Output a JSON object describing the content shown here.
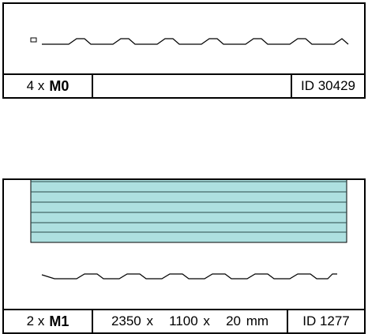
{
  "panels": [
    {
      "quantity_label": "4 x",
      "code": "M0",
      "dimensions": "",
      "id_label": "ID 30429",
      "panel_colors": {
        "outline": "#000000"
      }
    },
    {
      "quantity_label": "2 x",
      "code": "M1",
      "dimensions": "2350 x   1100 x   20 mm",
      "id_label": "ID 1277",
      "panel_colors": {
        "fill": "#aee0e0",
        "stripe_lines": "#2a4a4a",
        "outline": "#000000"
      }
    }
  ]
}
